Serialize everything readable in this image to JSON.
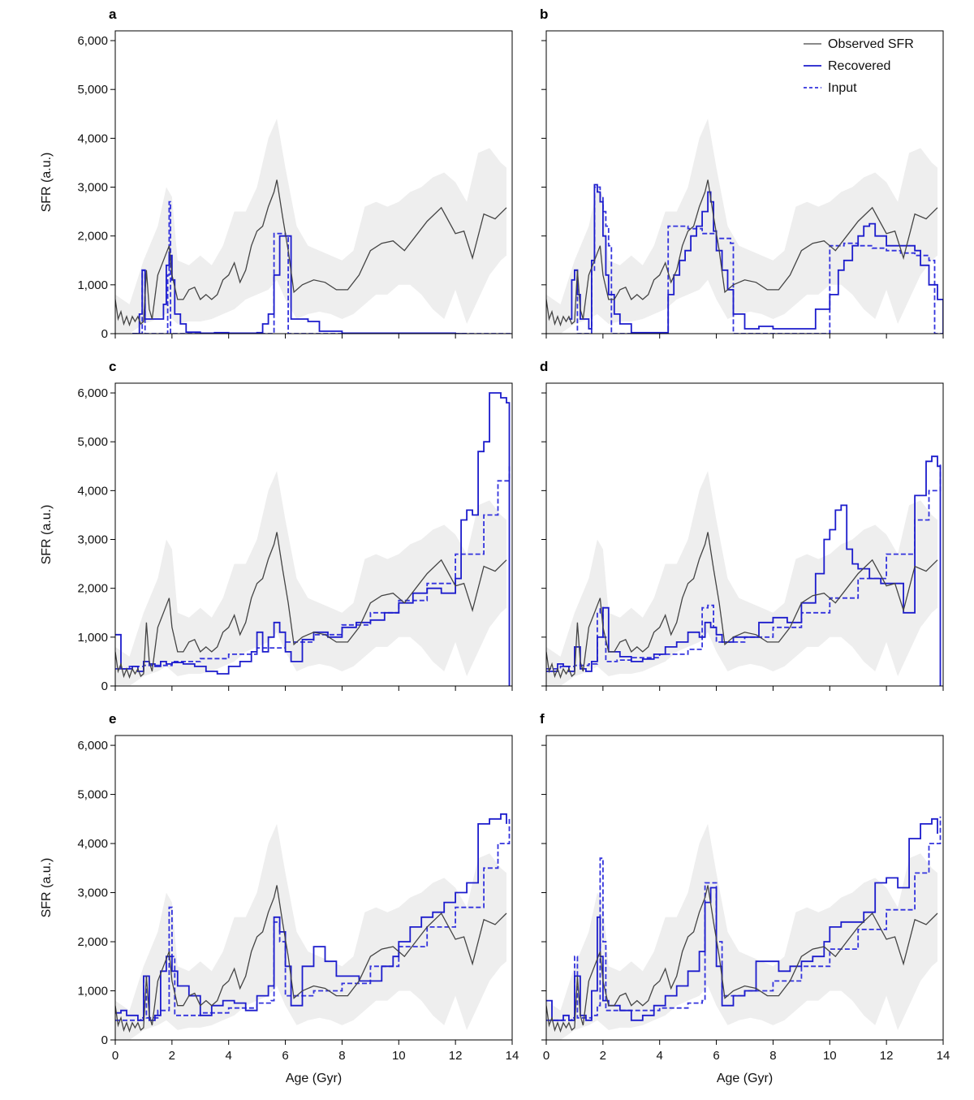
{
  "colors": {
    "observed": "#444444",
    "recovered": "#1c1ccc",
    "input": "#3333dd",
    "band": "#eeeeee"
  },
  "chart_data": {
    "type": "line",
    "x_label": "Age (Gyr)",
    "y_label": "SFR (a.u.)",
    "xlim": [
      0,
      14
    ],
    "ylim": [
      0,
      6200
    ],
    "x_ticks": [
      "0",
      "2",
      "4",
      "6",
      "8",
      "10",
      "12",
      "14"
    ],
    "y_ticks": [
      "0",
      "1,000",
      "2,000",
      "3,000",
      "4,000",
      "5,000",
      "6,000"
    ],
    "legend": {
      "position": "top-right",
      "entries": [
        "Observed SFR",
        "Recovered",
        "Input"
      ]
    },
    "observed": {
      "x": [
        0,
        0.1,
        0.2,
        0.3,
        0.4,
        0.5,
        0.6,
        0.7,
        0.8,
        0.9,
        1.0,
        1.1,
        1.2,
        1.3,
        1.5,
        1.7,
        1.9,
        2.0,
        2.2,
        2.4,
        2.6,
        2.8,
        3.0,
        3.2,
        3.4,
        3.6,
        3.8,
        4.0,
        4.2,
        4.4,
        4.6,
        4.8,
        5.0,
        5.2,
        5.4,
        5.6,
        5.7,
        5.9,
        6.1,
        6.3,
        6.6,
        7.0,
        7.4,
        7.8,
        8.2,
        8.6,
        9.0,
        9.4,
        9.8,
        10.2,
        10.6,
        11.0,
        11.5,
        12.0,
        12.3,
        12.6,
        13.0,
        13.4,
        13.8
      ],
      "y": [
        700,
        300,
        450,
        200,
        350,
        180,
        350,
        250,
        350,
        200,
        250,
        1300,
        500,
        300,
        1200,
        1500,
        1800,
        1200,
        700,
        700,
        900,
        950,
        700,
        800,
        700,
        800,
        1100,
        1200,
        1450,
        1050,
        1300,
        1800,
        2100,
        2200,
        2600,
        2900,
        3150,
        2400,
        1700,
        850,
        1000,
        1100,
        1050,
        900,
        900,
        1200,
        1700,
        1850,
        1900,
        1700,
        2000,
        2300,
        2580,
        2050,
        2100,
        1550,
        2450,
        2350,
        2580
      ]
    },
    "band": {
      "x": [
        0,
        0.5,
        1.0,
        1.5,
        1.8,
        2.0,
        2.2,
        2.6,
        3.0,
        3.4,
        3.8,
        4.2,
        4.6,
        5.0,
        5.4,
        5.7,
        6.0,
        6.4,
        6.8,
        7.2,
        7.6,
        8.0,
        8.4,
        8.8,
        9.2,
        9.6,
        10.0,
        10.4,
        10.8,
        11.2,
        11.6,
        12.0,
        12.4,
        12.8,
        13.2,
        13.6,
        13.8
      ],
      "upper": [
        800,
        600,
        1500,
        2200,
        3000,
        2800,
        1500,
        1400,
        1600,
        1400,
        1800,
        2500,
        2500,
        3000,
        4000,
        4400,
        3400,
        2200,
        1800,
        1700,
        1600,
        1500,
        1700,
        2600,
        2700,
        2600,
        2700,
        2900,
        3000,
        3200,
        3300,
        3100,
        2700,
        3700,
        3800,
        3500,
        3400
      ],
      "lower": [
        0,
        0,
        200,
        300,
        400,
        300,
        200,
        250,
        250,
        300,
        400,
        500,
        700,
        800,
        900,
        1100,
        700,
        300,
        400,
        450,
        400,
        300,
        400,
        600,
        800,
        800,
        1000,
        1000,
        800,
        500,
        300,
        900,
        200,
        700,
        1200,
        1500,
        1600
      ]
    },
    "panels": [
      {
        "label": "a",
        "show_legend": false,
        "recovered": {
          "x": [
            0.6,
            0.85,
            0.95,
            1.05,
            1.7,
            1.8,
            1.9,
            2.0,
            2.1,
            2.3,
            2.5,
            3,
            3.5,
            4,
            4.5,
            5,
            5.2,
            5.4,
            5.6,
            5.8,
            6.2,
            6.8,
            7.2,
            8,
            10,
            12,
            12.4
          ],
          "y": [
            0,
            400,
            1300,
            300,
            600,
            1400,
            1600,
            1100,
            400,
            200,
            30,
            10,
            20,
            10,
            10,
            20,
            200,
            400,
            1200,
            2000,
            300,
            250,
            50,
            10,
            10,
            0,
            0
          ]
        },
        "input": {
          "x": [
            0.6,
            0.85,
            0.95,
            1.05,
            1.75,
            1.85,
            1.9,
            1.95,
            2.05,
            5.5,
            5.6,
            6.0,
            6.1,
            7.0,
            7.1,
            14
          ],
          "y": [
            0,
            0,
            1300,
            0,
            0,
            1200,
            2700,
            0,
            0,
            0,
            2050,
            2000,
            0,
            0,
            0,
            0
          ]
        }
      },
      {
        "label": "b",
        "show_legend": true,
        "recovered": {
          "x": [
            0.8,
            0.9,
            1.0,
            1.1,
            1.2,
            1.5,
            1.6,
            1.7,
            1.8,
            1.9,
            2.0,
            2.1,
            2.2,
            2.4,
            2.6,
            3,
            4,
            4.3,
            4.5,
            4.7,
            4.9,
            5.1,
            5.3,
            5.5,
            5.7,
            5.8,
            5.9,
            6.0,
            6.2,
            6.4,
            6.6,
            7.0,
            7.5,
            8,
            9,
            9.5,
            10,
            10.3,
            10.5,
            10.8,
            11,
            11.2,
            11.4,
            11.6,
            12,
            12.5,
            13,
            13.2,
            13.5,
            13.8,
            14
          ],
          "y": [
            300,
            1100,
            1300,
            800,
            300,
            100,
            1500,
            3050,
            2900,
            2700,
            2000,
            1200,
            800,
            400,
            200,
            20,
            20,
            800,
            1200,
            1500,
            1700,
            2000,
            2200,
            2500,
            2900,
            2700,
            2100,
            1700,
            1300,
            900,
            400,
            100,
            150,
            100,
            100,
            500,
            800,
            1300,
            1500,
            1800,
            2000,
            2200,
            2250,
            2000,
            1800,
            1800,
            1700,
            1400,
            1000,
            700,
            0
          ]
        },
        "input": {
          "x": [
            1.0,
            1.1,
            1.55,
            1.6,
            1.7,
            1.9,
            2.0,
            2.1,
            2.2,
            2.3,
            4.2,
            4.3,
            5.0,
            5.5,
            6.0,
            6.5,
            6.6,
            9.9,
            10.0,
            10.5,
            11,
            11.5,
            12,
            12.5,
            13,
            13.5,
            13.7,
            14
          ],
          "y": [
            1300,
            0,
            0,
            1300,
            3000,
            2800,
            2500,
            2200,
            1800,
            0,
            0,
            2200,
            2150,
            2050,
            1950,
            1850,
            0,
            0,
            1800,
            1850,
            1800,
            1750,
            1700,
            1650,
            1600,
            1500,
            0,
            0
          ]
        }
      },
      {
        "label": "c",
        "show_legend": false,
        "recovered": {
          "x": [
            0,
            0.2,
            0.4,
            0.6,
            0.8,
            1.0,
            1.2,
            1.4,
            1.6,
            1.8,
            2.0,
            2.4,
            2.8,
            3.2,
            3.6,
            4.0,
            4.4,
            4.8,
            5.0,
            5.2,
            5.4,
            5.6,
            5.8,
            6.0,
            6.2,
            6.6,
            7.0,
            7.5,
            8,
            8.5,
            9,
            9.5,
            10,
            10.5,
            11,
            11.5,
            12,
            12.2,
            12.4,
            12.6,
            12.8,
            13,
            13.2,
            13.4,
            13.6,
            13.8,
            13.9
          ],
          "y": [
            1050,
            350,
            350,
            400,
            300,
            500,
            450,
            400,
            500,
            450,
            480,
            450,
            400,
            300,
            250,
            400,
            500,
            700,
            1100,
            700,
            1000,
            1300,
            1100,
            700,
            500,
            950,
            1100,
            1000,
            1200,
            1300,
            1350,
            1500,
            1700,
            1900,
            2000,
            1900,
            2200,
            3400,
            3600,
            3500,
            4800,
            5000,
            6000,
            6000,
            5900,
            5800,
            0
          ]
        },
        "input": {
          "x": [
            0,
            0.5,
            1,
            2,
            3,
            4,
            5,
            6,
            7,
            8,
            9,
            10,
            11,
            12,
            13,
            13.5,
            13.9
          ],
          "y": [
            350,
            400,
            420,
            500,
            560,
            650,
            780,
            900,
            1050,
            1250,
            1500,
            1750,
            2100,
            2700,
            3500,
            4200,
            4550
          ]
        }
      },
      {
        "label": "d",
        "show_legend": false,
        "recovered": {
          "x": [
            0,
            0.2,
            0.4,
            0.6,
            0.8,
            1.0,
            1.2,
            1.4,
            1.6,
            1.8,
            2.0,
            2.2,
            2.6,
            3,
            3.4,
            3.8,
            4.2,
            4.6,
            5,
            5.4,
            5.6,
            5.8,
            6.0,
            6.2,
            6.6,
            7,
            7.5,
            8,
            8.5,
            9,
            9.2,
            9.5,
            9.8,
            10,
            10.2,
            10.4,
            10.6,
            10.8,
            11,
            11.4,
            11.8,
            12.2,
            12.6,
            13,
            13.4,
            13.6,
            13.8,
            13.9
          ],
          "y": [
            300,
            300,
            450,
            400,
            300,
            800,
            350,
            300,
            500,
            1000,
            1600,
            700,
            600,
            500,
            550,
            650,
            800,
            900,
            1100,
            1000,
            1300,
            1200,
            1050,
            900,
            1000,
            1000,
            1300,
            1400,
            1300,
            1700,
            1700,
            2300,
            3000,
            3200,
            3600,
            3700,
            2800,
            2500,
            2400,
            2200,
            2100,
            2100,
            1500,
            3900,
            4600,
            4700,
            4500,
            0
          ]
        },
        "input": {
          "x": [
            0,
            0.5,
            1.0,
            1.5,
            1.8,
            1.9,
            2.0,
            2.1,
            2.5,
            3,
            4,
            5,
            5.5,
            5.7,
            5.9,
            6.0,
            7,
            8,
            9,
            10,
            11,
            12,
            13,
            13.5,
            13.9
          ],
          "y": [
            350,
            400,
            420,
            450,
            1500,
            1600,
            1000,
            500,
            530,
            580,
            650,
            750,
            1600,
            1650,
            1200,
            900,
            1000,
            1200,
            1500,
            1800,
            2200,
            2700,
            3400,
            4000,
            4550
          ]
        }
      },
      {
        "label": "e",
        "show_legend": false,
        "recovered": {
          "x": [
            0,
            0.2,
            0.4,
            0.6,
            0.8,
            1.0,
            1.2,
            1.4,
            1.6,
            1.8,
            2.0,
            2.2,
            2.6,
            3,
            3.4,
            3.8,
            4.2,
            4.6,
            5,
            5.4,
            5.6,
            5.8,
            6.0,
            6.2,
            6.6,
            7,
            7.4,
            7.8,
            8.2,
            8.6,
            9,
            9.4,
            9.8,
            10,
            10.4,
            10.8,
            11.2,
            11.6,
            12,
            12.4,
            12.8,
            13.2,
            13.6,
            13.8
          ],
          "y": [
            550,
            600,
            500,
            500,
            400,
            1300,
            400,
            500,
            1400,
            1700,
            1400,
            1100,
            900,
            500,
            700,
            800,
            750,
            600,
            900,
            1100,
            2500,
            2200,
            1500,
            700,
            1500,
            1900,
            1600,
            1300,
            1300,
            1200,
            1200,
            1500,
            1700,
            2000,
            2300,
            2500,
            2600,
            2800,
            3000,
            3200,
            4400,
            4500,
            4600,
            4400
          ]
        },
        "input": {
          "x": [
            0,
            0.5,
            0.9,
            1.0,
            1.1,
            1.5,
            1.9,
            2.0,
            2.1,
            3,
            4,
            5,
            5.5,
            5.6,
            5.8,
            6.0,
            7,
            8,
            9,
            10,
            11,
            12,
            13,
            13.5,
            13.9
          ],
          "y": [
            400,
            400,
            450,
            1300,
            450,
            600,
            2700,
            1700,
            500,
            550,
            650,
            750,
            800,
            2400,
            2000,
            900,
            1000,
            1150,
            1500,
            1900,
            2300,
            2700,
            3500,
            4000,
            4500
          ]
        }
      },
      {
        "label": "f",
        "show_legend": false,
        "recovered": {
          "x": [
            0,
            0.2,
            0.4,
            0.6,
            0.8,
            1.0,
            1.2,
            1.4,
            1.6,
            1.8,
            1.9,
            2.0,
            2.2,
            2.6,
            3,
            3.4,
            3.8,
            4.2,
            4.6,
            5,
            5.4,
            5.6,
            5.8,
            6.0,
            6.2,
            6.6,
            7,
            7.4,
            7.8,
            8.2,
            8.6,
            9,
            9.4,
            9.8,
            10,
            10.4,
            10.8,
            11.2,
            11.6,
            12,
            12.4,
            12.8,
            13.2,
            13.6,
            13.8
          ],
          "y": [
            800,
            400,
            400,
            500,
            400,
            1300,
            500,
            400,
            1000,
            2500,
            1700,
            800,
            700,
            600,
            400,
            500,
            700,
            900,
            1100,
            1400,
            1800,
            2800,
            3100,
            1500,
            700,
            900,
            1000,
            1600,
            1600,
            1400,
            1500,
            1600,
            1700,
            2000,
            2300,
            2400,
            2400,
            2600,
            3200,
            3300,
            3100,
            4100,
            4400,
            4500,
            4200
          ]
        },
        "input": {
          "x": [
            0,
            0.5,
            0.9,
            1.0,
            1.1,
            1.6,
            1.8,
            1.9,
            2.0,
            2.1,
            3,
            4,
            5,
            5.5,
            5.6,
            5.8,
            6.0,
            6.2,
            7,
            8,
            9,
            10,
            11,
            12,
            13,
            13.5,
            13.9
          ],
          "y": [
            400,
            400,
            450,
            1700,
            450,
            500,
            700,
            3700,
            2000,
            600,
            600,
            650,
            750,
            800,
            3200,
            3200,
            2000,
            900,
            1000,
            1200,
            1500,
            1850,
            2250,
            2650,
            3400,
            4000,
            4550
          ]
        }
      }
    ]
  }
}
